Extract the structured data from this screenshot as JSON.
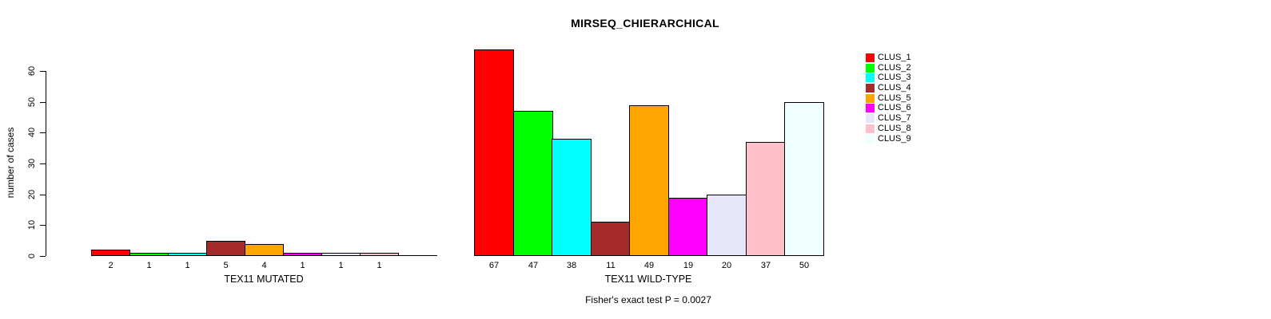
{
  "chart_data": {
    "type": "bar",
    "title": "MIRSEQ_CHIERARCHICAL",
    "ylabel": "number of cases",
    "ylim": [
      0,
      60
    ],
    "yticks": [
      0,
      10,
      20,
      30,
      40,
      50,
      60
    ],
    "grid": false,
    "legend_position": "right",
    "clusters": [
      {
        "name": "CLUS_1",
        "color": "#FF0000"
      },
      {
        "name": "CLUS_2",
        "color": "#00FF00"
      },
      {
        "name": "CLUS_3",
        "color": "#00FFFF"
      },
      {
        "name": "CLUS_4",
        "color": "#A52A2A"
      },
      {
        "name": "CLUS_5",
        "color": "#FFA500"
      },
      {
        "name": "CLUS_6",
        "color": "#FF00FF"
      },
      {
        "name": "CLUS_7",
        "color": "#E6E6FA"
      },
      {
        "name": "CLUS_8",
        "color": "#FFC0CB"
      },
      {
        "name": "CLUS_9",
        "color": "#F0FFFF"
      }
    ],
    "groups": [
      {
        "label": "TEX11 MUTATED",
        "values": [
          2,
          1,
          1,
          5,
          4,
          1,
          1,
          1,
          0
        ],
        "bar_labels": [
          "2",
          "1",
          "1",
          "5",
          "4",
          "1",
          "1",
          "1",
          ""
        ]
      },
      {
        "label": "TEX11 WILD-TYPE",
        "values": [
          67,
          47,
          38,
          11,
          49,
          19,
          20,
          37,
          50
        ],
        "bar_labels": [
          "67",
          "47",
          "38",
          "11",
          "49",
          "19",
          "20",
          "37",
          "50"
        ]
      }
    ],
    "footnote": "Fisher's exact test P = 0.0027"
  }
}
